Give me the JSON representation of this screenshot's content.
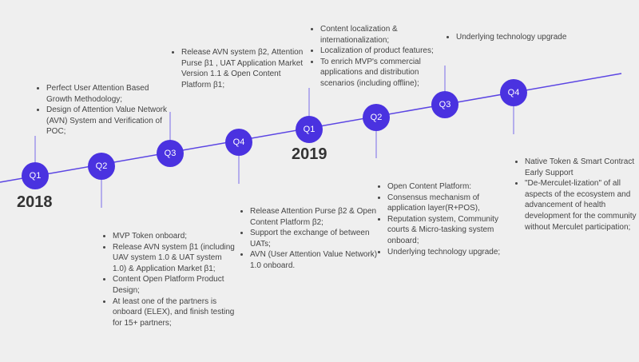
{
  "years": [
    "2018",
    "2019"
  ],
  "nodes": [
    "Q1",
    "Q2",
    "Q3",
    "Q4",
    "Q1",
    "Q2",
    "Q3",
    "Q4"
  ],
  "notes": [
    [
      "Perfect User Attention Based Growth Methodology;",
      "Design of Attention Value Network (AVN) System and Verification of POC;"
    ],
    [
      "MVP Token onboard;",
      "Release AVN system β1 (including UAV system 1.0 & UAT system 1.0) & Application Market β1;",
      "Content Open Platform Product Design;",
      "At least one of the partners is onboard (ELEX), and finish testing for 15+ partners;"
    ],
    [
      "Release AVN system β2, Attention Purse β1 , UAT Application Market Version 1.1 & Open Content Platform β1;"
    ],
    [
      "Release Attention Purse β2 & Open Content Platform β2;",
      "Support the exchange of between UATs;",
      "AVN (User Attention Value Network) 1.0 onboard."
    ],
    [
      "Content localization & internationalization;",
      "Localization of product features;",
      "To enrich MVP's commercial applications and distribution scenarios (including offline);"
    ],
    [
      "Open Content Platform:",
      "Consensus mechanism of application layer(R+POS),",
      "Reputation system, Community courts & Micro-tasking system onboard;",
      "Underlying technology upgrade;"
    ],
    [
      "Underlying technology upgrade"
    ],
    [
      "Native Token & Smart Contract Early Support",
      "\"De-Merculet-lization\" of all aspects of the ecosystem and advancement of health development for the community without Merculet participation;"
    ]
  ],
  "colors": {
    "accent": "#4a32e0",
    "line": "#5b45e3",
    "connector": "#7a6bea",
    "text": "#444444",
    "background": "#efefef"
  }
}
